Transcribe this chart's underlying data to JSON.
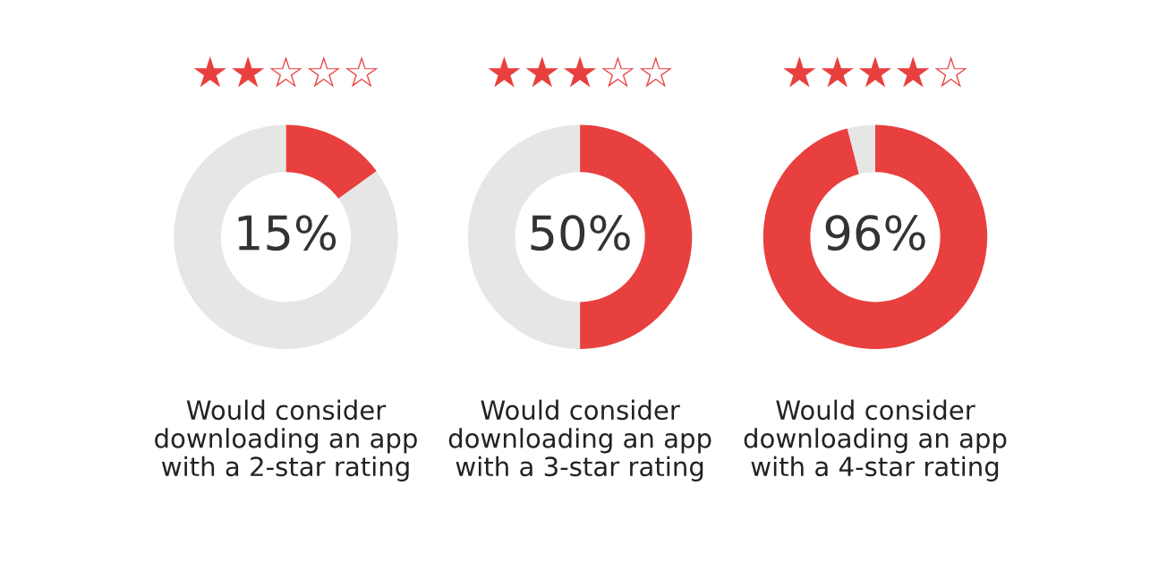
{
  "chart_data": [
    {
      "type": "donut",
      "title": "★★☆☆☆",
      "categories": [
        null,
        null
      ],
      "values": [
        15,
        85
      ],
      "colors": [
        "#e8403f",
        "#e6e6e6"
      ],
      "annotations": [
        "15%"
      ],
      "xlabel": "Would consider\ndownloading an app\nwith a 2-star rating"
    },
    {
      "type": "donut",
      "title": "★★★☆☆",
      "categories": [
        null,
        null
      ],
      "values": [
        50,
        50
      ],
      "colors": [
        "#e8403f",
        "#e6e6e6"
      ],
      "annotations": [
        "50%"
      ],
      "xlabel": "Would consider\ndownloading an app\nwith a 3-star rating"
    },
    {
      "type": "donut",
      "title": "★★★★☆",
      "categories": [
        null,
        null
      ],
      "values": [
        96,
        4
      ],
      "colors": [
        "#e8403f",
        "#e6e6e6"
      ],
      "annotations": [
        "96%"
      ],
      "xlabel": "Would consider\ndownloading an app\nwith a 4-star rating"
    }
  ]
}
